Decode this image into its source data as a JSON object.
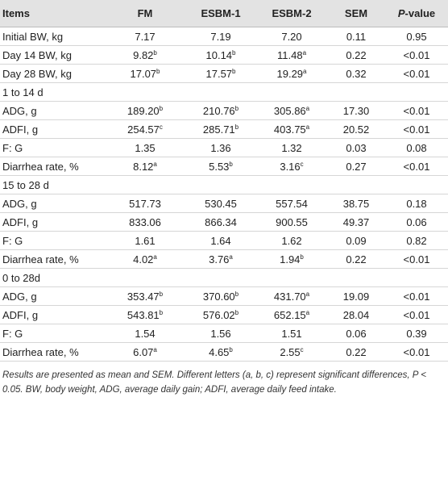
{
  "table": {
    "header": [
      "Items",
      "FM",
      "ESBM-1",
      "ESBM-2",
      "SEM",
      {
        "italic": "P",
        "text": "-value"
      }
    ],
    "rows": [
      [
        "Initial BW, kg",
        "7.17",
        "7.19",
        "7.20",
        "0.11",
        "0.95"
      ],
      [
        "Day 14 BW, kg",
        {
          "text": "9.82",
          "sup": "b"
        },
        {
          "text": "10.14",
          "sup": "b"
        },
        {
          "text": "11.48",
          "sup": "a"
        },
        "0.22",
        "<0.01"
      ],
      [
        "Day 28 BW, kg",
        {
          "text": "17.07",
          "sup": "b"
        },
        {
          "text": "17.57",
          "sup": "b"
        },
        {
          "text": "19.29",
          "sup": "a"
        },
        "0.32",
        "<0.01"
      ],
      [
        "1 to 14 d"
      ],
      [
        "ADG, g",
        {
          "text": "189.20",
          "sup": "b"
        },
        {
          "text": "210.76",
          "sup": "b"
        },
        {
          "text": "305.86",
          "sup": "a"
        },
        "17.30",
        "<0.01"
      ],
      [
        "ADFI, g",
        {
          "text": "254.57",
          "sup": "c"
        },
        {
          "text": "285.71",
          "sup": "b"
        },
        {
          "text": "403.75",
          "sup": "a"
        },
        "20.52",
        "<0.01"
      ],
      [
        "F: G",
        "1.35",
        "1.36",
        "1.32",
        "0.03",
        "0.08"
      ],
      [
        "Diarrhea rate, %",
        {
          "text": "8.12",
          "sup": "a"
        },
        {
          "text": "5.53",
          "sup": "b"
        },
        {
          "text": "3.16",
          "sup": "c"
        },
        "0.27",
        "<0.01"
      ],
      [
        "15 to 28 d"
      ],
      [
        "ADG, g",
        "517.73",
        "530.45",
        "557.54",
        "38.75",
        "0.18"
      ],
      [
        "ADFI, g",
        "833.06",
        "866.34",
        "900.55",
        "49.37",
        "0.06"
      ],
      [
        "F: G",
        "1.61",
        "1.64",
        "1.62",
        "0.09",
        "0.82"
      ],
      [
        "Diarrhea rate, %",
        {
          "text": "4.02",
          "sup": "a"
        },
        {
          "text": "3.76",
          "sup": "a"
        },
        {
          "text": "1.94",
          "sup": "b"
        },
        "0.22",
        "<0.01"
      ],
      [
        "0 to 28d"
      ],
      [
        "ADG, g",
        {
          "text": "353.47",
          "sup": "b"
        },
        {
          "text": "370.60",
          "sup": "b"
        },
        {
          "text": "431.70",
          "sup": "a"
        },
        "19.09",
        "<0.01"
      ],
      [
        "ADFI, g",
        {
          "text": "543.81",
          "sup": "b"
        },
        {
          "text": "576.02",
          "sup": "b"
        },
        {
          "text": "652.15",
          "sup": "a"
        },
        "28.04",
        "<0.01"
      ],
      [
        "F: G",
        "1.54",
        "1.56",
        "1.51",
        "0.06",
        "0.39"
      ],
      [
        "Diarrhea rate, %",
        {
          "text": "6.07",
          "sup": "a"
        },
        {
          "text": "4.65",
          "sup": "b"
        },
        {
          "text": "2.55",
          "sup": "c"
        },
        "0.22",
        "<0.01"
      ]
    ],
    "footnote": "Results are presented as mean and SEM. Different letters (a, b, c) represent significant differences, P < 0.05. BW, body weight, ADG, average daily gain; ADFI, average daily feed intake."
  }
}
